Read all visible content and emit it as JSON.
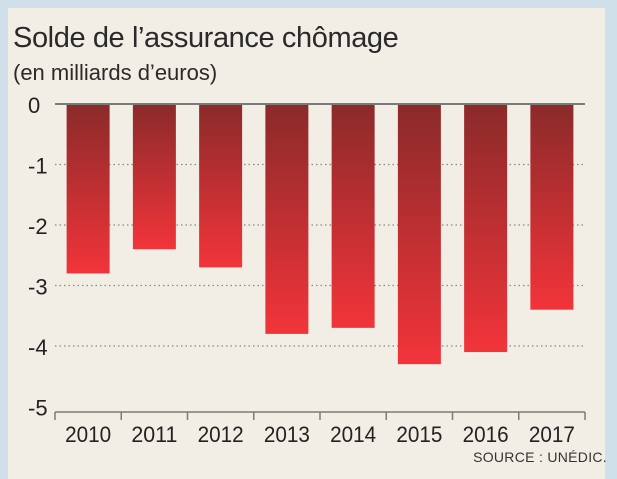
{
  "title": "Solde de l’assurance chômage",
  "subtitle": "(en milliards d’euros)",
  "source": "SOURCE : UNÉDIC.",
  "colors": {
    "bar_top": "#8b2a2a",
    "bar_bottom": "#f2343a",
    "axis": "#7a7a7a",
    "grid": "#888888"
  },
  "chart_data": {
    "type": "bar",
    "categories": [
      "2010",
      "2011",
      "2012",
      "2013",
      "2014",
      "2015",
      "2016",
      "2017"
    ],
    "values": [
      -2.8,
      -2.4,
      -2.7,
      -3.8,
      -3.7,
      -4.3,
      -4.1,
      -3.4
    ],
    "yticks": [
      "0",
      "-1",
      "-2",
      "-3",
      "-4",
      "-5"
    ],
    "ylim": [
      -5,
      0
    ],
    "grid": true
  }
}
